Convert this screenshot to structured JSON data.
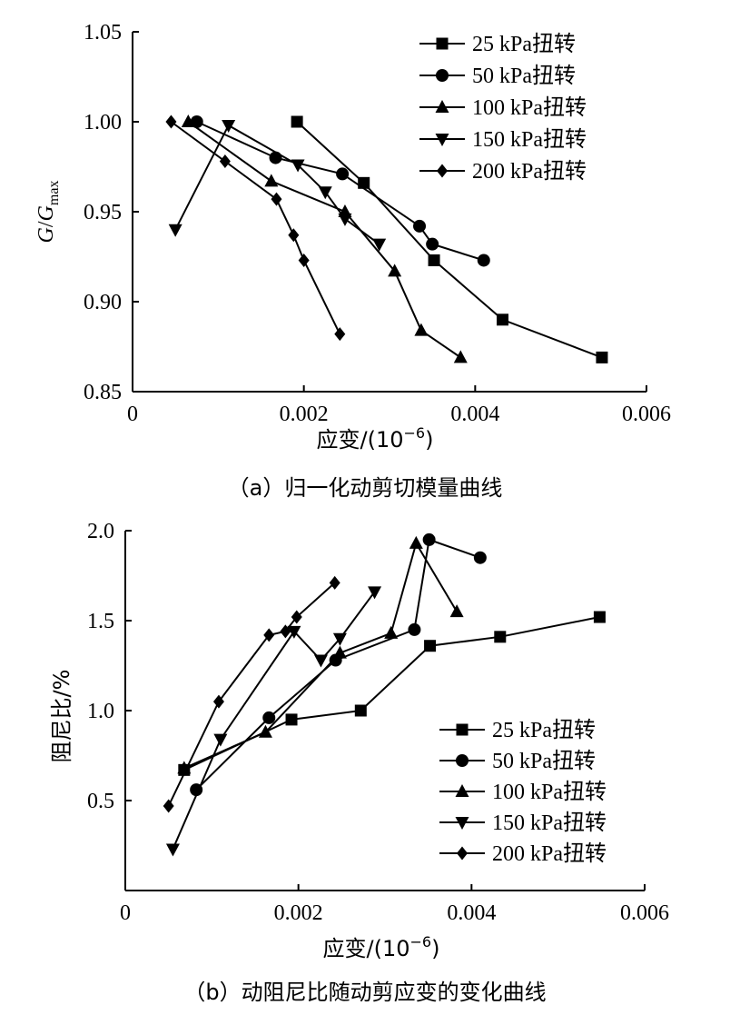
{
  "chart_data": [
    {
      "type": "line",
      "caption": "（a）归一化动剪切模量曲线",
      "xlabel": "应变/(10",
      "xlabel_exp": "−6",
      "xlabel_close": ")",
      "ylabel_g": "G",
      "ylabel_slash": "/",
      "ylabel_gmax": "G",
      "ylabel_sub": "max",
      "xlim": [
        0,
        0.006
      ],
      "ylim": [
        0.85,
        1.05
      ],
      "xticks": [
        "0",
        "0.002",
        "0.004",
        "0.006"
      ],
      "yticks": [
        "0.85",
        "0.90",
        "0.95",
        "1.00",
        "1.05"
      ],
      "legend_position": "top-right",
      "series": [
        {
          "name": "25 kPa扭转",
          "marker": "square",
          "x": [
            0.00192,
            0.0027,
            0.00352,
            0.00432,
            0.00548
          ],
          "y": [
            1.0,
            0.966,
            0.923,
            0.89,
            0.869
          ]
        },
        {
          "name": "50 kPa扭转",
          "marker": "circle",
          "x": [
            0.00075,
            0.00167,
            0.00245,
            0.00335,
            0.0035,
            0.0041
          ],
          "y": [
            1.0,
            0.98,
            0.971,
            0.942,
            0.932,
            0.923
          ]
        },
        {
          "name": "100 kPa扭转",
          "marker": "triangle-up",
          "x": [
            0.00065,
            0.00162,
            0.00248,
            0.00306,
            0.00337,
            0.00383
          ],
          "y": [
            1.0,
            0.967,
            0.95,
            0.917,
            0.884,
            0.869
          ]
        },
        {
          "name": "150 kPa扭转",
          "marker": "triangle-down",
          "x": [
            0.0005,
            0.00112,
            0.00193,
            0.00225,
            0.00248,
            0.00288
          ],
          "y": [
            0.94,
            0.998,
            0.976,
            0.961,
            0.946,
            0.932
          ]
        },
        {
          "name": "200 kPa扭转",
          "marker": "diamond",
          "x": [
            0.00045,
            0.00108,
            0.00168,
            0.00188,
            0.002,
            0.00242
          ],
          "y": [
            1.0,
            0.978,
            0.957,
            0.937,
            0.923,
            0.882
          ]
        }
      ]
    },
    {
      "type": "line",
      "caption": "（b）动阻尼比随动剪应变的变化曲线",
      "xlabel": "应变/(10",
      "xlabel_exp": "−6",
      "xlabel_close": ")",
      "ylabel": "阻尼比/%",
      "xlim": [
        0,
        0.006
      ],
      "ylim": [
        0,
        2.0
      ],
      "yticks_values": [
        0.5,
        1.0,
        1.5,
        2.0
      ],
      "xticks": [
        "0",
        "0.002",
        "0.004",
        "0.006"
      ],
      "yticks": [
        "0.5",
        "1.0",
        "1.5",
        "2.0"
      ],
      "legend_position": "bottom-right",
      "series": [
        {
          "name": "25 kPa扭转",
          "marker": "square",
          "x": [
            0.00068,
            0.00192,
            0.00272,
            0.00352,
            0.00433,
            0.00548
          ],
          "y": [
            0.67,
            0.95,
            1.0,
            1.36,
            1.41,
            1.52
          ]
        },
        {
          "name": "50 kPa扭转",
          "marker": "circle",
          "x": [
            0.00082,
            0.00166,
            0.00243,
            0.00334,
            0.00351,
            0.0041
          ],
          "y": [
            0.56,
            0.96,
            1.28,
            1.45,
            1.95,
            1.85
          ]
        },
        {
          "name": "100 kPa扭转",
          "marker": "triangle-up",
          "x": [
            0.00068,
            0.00162,
            0.00248,
            0.00307,
            0.00336,
            0.00383
          ],
          "y": [
            0.68,
            0.88,
            1.32,
            1.43,
            1.93,
            1.55
          ]
        },
        {
          "name": "150 kPa扭转",
          "marker": "triangle-down",
          "x": [
            0.00055,
            0.0011,
            0.00195,
            0.00226,
            0.00248,
            0.00288
          ],
          "y": [
            0.23,
            0.84,
            1.44,
            1.28,
            1.4,
            1.66
          ]
        },
        {
          "name": "200 kPa扭转",
          "marker": "diamond",
          "x": [
            0.0005,
            0.00108,
            0.00166,
            0.00185,
            0.00198,
            0.00242
          ],
          "y": [
            0.47,
            1.05,
            1.42,
            1.44,
            1.52,
            1.71
          ]
        }
      ]
    }
  ]
}
